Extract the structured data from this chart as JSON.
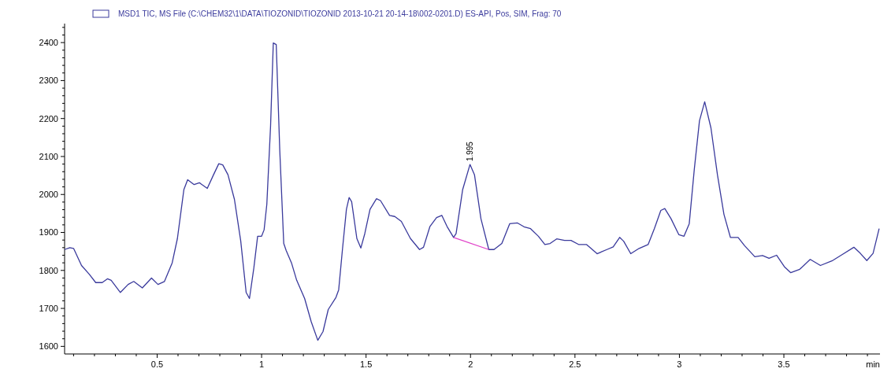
{
  "chart_data": {
    "type": "line",
    "xlabel": "min",
    "legend": "top",
    "grid": false,
    "marker": "none",
    "line_style": "solid",
    "xlim": [
      0.057,
      3.96
    ],
    "ylim": [
      1580,
      2450
    ],
    "xticks": [
      {
        "value": 0.1,
        "label": null
      },
      {
        "value": 0.2,
        "label": null
      },
      {
        "value": 0.3,
        "label": null
      },
      {
        "value": 0.4,
        "label": null
      },
      {
        "value": 0.5,
        "label": "0.5"
      },
      {
        "value": 0.6,
        "label": null
      },
      {
        "value": 0.7,
        "label": null
      },
      {
        "value": 0.8,
        "label": null
      },
      {
        "value": 0.9,
        "label": null
      },
      1,
      {
        "value": 1.1,
        "label": null
      },
      {
        "value": 1.2,
        "label": null
      },
      {
        "value": 1.3,
        "label": null
      },
      {
        "value": 1.4,
        "label": null
      },
      {
        "value": 1.5,
        "label": "1.5"
      },
      {
        "value": 1.6,
        "label": null
      },
      {
        "value": 1.7,
        "label": null
      },
      {
        "value": 1.8,
        "label": null
      },
      {
        "value": 1.9,
        "label": null
      },
      2,
      {
        "value": 2.1,
        "label": null
      },
      {
        "value": 2.2,
        "label": null
      },
      {
        "value": 2.3,
        "label": null
      },
      {
        "value": 2.4,
        "label": null
      },
      {
        "value": 2.5,
        "label": "2.5"
      },
      {
        "value": 2.6,
        "label": null
      },
      {
        "value": 2.7,
        "label": null
      },
      {
        "value": 2.8,
        "label": null
      },
      {
        "value": 2.9,
        "label": null
      },
      3,
      {
        "value": 3.1,
        "label": null
      },
      {
        "value": 3.2,
        "label": null
      },
      {
        "value": 3.3,
        "label": null
      },
      {
        "value": 3.4,
        "label": null
      },
      {
        "value": 3.5,
        "label": "3.5"
      },
      {
        "value": 3.6,
        "label": null
      },
      {
        "value": 3.7,
        "label": null
      },
      {
        "value": 3.8,
        "label": null
      },
      {
        "value": 3.9,
        "label": null
      }
    ],
    "yticks": [
      1600,
      {
        "value": 1620,
        "label": null
      },
      {
        "value": 1640,
        "label": null
      },
      {
        "value": 1660,
        "label": null
      },
      {
        "value": 1680,
        "label": null
      },
      1700,
      {
        "value": 1720,
        "label": null
      },
      {
        "value": 1740,
        "label": null
      },
      {
        "value": 1760,
        "label": null
      },
      {
        "value": 1780,
        "label": null
      },
      1800,
      {
        "value": 1820,
        "label": null
      },
      {
        "value": 1840,
        "label": null
      },
      {
        "value": 1860,
        "label": null
      },
      {
        "value": 1880,
        "label": null
      },
      1900,
      {
        "value": 1920,
        "label": null
      },
      {
        "value": 1940,
        "label": null
      },
      {
        "value": 1960,
        "label": null
      },
      {
        "value": 1980,
        "label": null
      },
      2000,
      {
        "value": 2020,
        "label": null
      },
      {
        "value": 2040,
        "label": null
      },
      {
        "value": 2060,
        "label": null
      },
      {
        "value": 2080,
        "label": null
      },
      2100,
      {
        "value": 2120,
        "label": null
      },
      {
        "value": 2140,
        "label": null
      },
      {
        "value": 2160,
        "label": null
      },
      {
        "value": 2180,
        "label": null
      },
      2200,
      {
        "value": 2220,
        "label": null
      },
      {
        "value": 2240,
        "label": null
      },
      {
        "value": 2260,
        "label": null
      },
      {
        "value": 2280,
        "label": null
      },
      2300,
      {
        "value": 2320,
        "label": null
      },
      {
        "value": 2340,
        "label": null
      },
      {
        "value": 2360,
        "label": null
      },
      {
        "value": 2380,
        "label": null
      },
      2400,
      {
        "value": 2420,
        "label": null
      },
      {
        "value": 2440,
        "label": null
      }
    ],
    "annotations": [
      {
        "text": "1.995",
        "x": 1.995,
        "y": 2079
      }
    ],
    "series": [
      {
        "name": "MSD1 TIC, MS File (C:\\CHEM32\\1\\DATA\\TIOZONID\\TIOZONID 2013-10-21 20-14-18\\002-0201.D)   ES-API, Pos, SIM, Frag: 70",
        "color": "#3a3a9c",
        "x": [
          0.057,
          0.082,
          0.1,
          0.138,
          0.175,
          0.206,
          0.237,
          0.262,
          0.28,
          0.324,
          0.361,
          0.388,
          0.429,
          0.473,
          0.504,
          0.535,
          0.572,
          0.597,
          0.628,
          0.646,
          0.677,
          0.702,
          0.74,
          0.77,
          0.795,
          0.814,
          0.839,
          0.87,
          0.9,
          0.926,
          0.942,
          0.963,
          0.981,
          1.0,
          1.012,
          1.025,
          1.043,
          1.056,
          1.07,
          1.087,
          1.106,
          1.118,
          1.143,
          1.168,
          1.206,
          1.2375,
          1.269,
          1.294,
          1.319,
          1.356,
          1.369,
          1.3875,
          1.406,
          1.419,
          1.431,
          1.456,
          1.475,
          1.494,
          1.519,
          1.55,
          1.569,
          1.6125,
          1.6375,
          1.669,
          1.7125,
          1.756,
          1.775,
          1.806,
          1.8375,
          1.8625,
          1.8875,
          1.919,
          1.931,
          1.9625,
          1.9975,
          2.019,
          2.05,
          2.0875,
          2.1125,
          2.15,
          2.1875,
          2.225,
          2.256,
          2.2875,
          2.325,
          2.356,
          2.381,
          2.4125,
          2.45,
          2.481,
          2.519,
          2.556,
          2.606,
          2.653,
          2.683,
          2.714,
          2.733,
          2.767,
          2.807,
          2.85,
          2.88,
          2.911,
          2.93,
          2.96,
          2.9975,
          3.022,
          3.047,
          3.071,
          3.096,
          3.121,
          3.151,
          3.182,
          3.213,
          3.244,
          3.281,
          3.312,
          3.361,
          3.398,
          3.429,
          3.465,
          3.502,
          3.533,
          3.576,
          3.626,
          3.675,
          3.73,
          3.78,
          3.835,
          3.866,
          3.897,
          3.927,
          3.956
        ],
        "values": [
          1855,
          1860,
          1858,
          1813,
          1790,
          1768,
          1768,
          1778,
          1774,
          1742,
          1763,
          1771,
          1754,
          1780,
          1763,
          1771,
          1820,
          1884,
          2013,
          2039,
          2026,
          2031,
          2016,
          2052,
          2081,
          2078,
          2052,
          1987,
          1878,
          1742,
          1726,
          1807,
          1890,
          1890,
          1907,
          1974,
          2181,
          2399,
          2395,
          2116,
          1871,
          1852,
          1820,
          1774,
          1726,
          1665,
          1616,
          1639,
          1697,
          1729,
          1749,
          1858,
          1961,
          1992,
          1981,
          1884,
          1859,
          1897,
          1961,
          1989,
          1984,
          1945,
          1942,
          1929,
          1884,
          1855,
          1861,
          1916,
          1939,
          1945,
          1916,
          1887,
          1897,
          2013,
          2079,
          2052,
          1936,
          1855,
          1855,
          1871,
          1923,
          1925,
          1915,
          1910,
          1890,
          1868,
          1871,
          1883,
          1879,
          1879,
          1868,
          1868,
          1844,
          1855,
          1862,
          1887,
          1877,
          1844,
          1858,
          1868,
          1910,
          1958,
          1963,
          1936,
          1894,
          1890,
          1923,
          2065,
          2194,
          2244,
          2175,
          2052,
          1948,
          1887,
          1887,
          1865,
          1836,
          1839,
          1832,
          1840,
          1810,
          1794,
          1803,
          1829,
          1813,
          1825,
          1842,
          1861,
          1845,
          1826,
          1845,
          1910
        ]
      },
      {
        "color": "#e040c8",
        "x": [
          1.919,
          2.0875
        ],
        "values": [
          1887,
          1855
        ]
      }
    ]
  }
}
